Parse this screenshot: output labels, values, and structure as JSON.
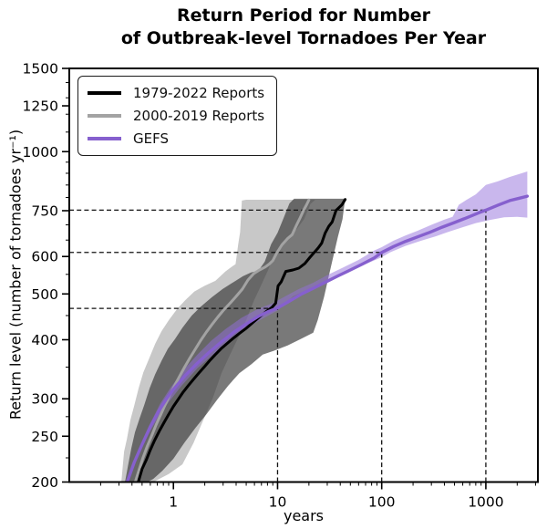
{
  "window": {
    "background": "#ffffff"
  },
  "title": {
    "line1": "Return Period for Number",
    "line2": "of Outbreak-level Tornadoes Per Year"
  },
  "axes": {
    "xlabel": "years",
    "ylabel": "Return level (number of tornadoes yr⁻¹)"
  },
  "legend": {
    "items": [
      {
        "label": "1979-2022 Reports",
        "color": "#000000"
      },
      {
        "label": "2000-2019 Reports",
        "color": "#a3a3a3"
      },
      {
        "label": "GEFS",
        "color": "#8660ce"
      }
    ]
  },
  "chart_data": {
    "type": "line",
    "title": "Return Period for Number of Outbreak-level Tornadoes Per Year",
    "xlabel": "years",
    "ylabel": "Return level (number of tornadoes yr⁻¹)",
    "xscale": "log",
    "yscale": "log",
    "xlim": [
      0.1,
      3160
    ],
    "ylim": [
      200,
      1500
    ],
    "grid": false,
    "legend_position": "upper left",
    "xticks": [
      1,
      10,
      100,
      1000
    ],
    "xticks_minor": [
      0.2,
      0.3,
      0.4,
      0.5,
      0.6,
      0.7,
      0.8,
      0.9,
      2,
      3,
      4,
      5,
      6,
      7,
      8,
      9,
      20,
      30,
      40,
      50,
      60,
      70,
      80,
      90,
      200,
      300,
      400,
      500,
      600,
      700,
      800,
      900,
      2000,
      3000
    ],
    "yticks": [
      200,
      250,
      300,
      400,
      500,
      600,
      750,
      1000,
      1250,
      1500
    ],
    "yticks_minor": [
      225,
      275,
      350,
      450,
      550,
      650,
      700,
      800,
      850,
      900,
      950,
      1100,
      1200,
      1300,
      1400
    ],
    "reference_crosshairs": [
      {
        "years": 10,
        "level": 466
      },
      {
        "years": 100,
        "level": 612
      },
      {
        "years": 1000,
        "level": 752
      }
    ],
    "crosshair_style": {
      "color": "#111111",
      "dash": "5 3.2",
      "width": 1.3
    },
    "series": [
      {
        "name": "1979-2022 Reports",
        "line_color": "#000000",
        "line_width": 3,
        "points": [
          [
            0.46,
            200
          ],
          [
            0.5,
            213
          ],
          [
            0.55,
            223
          ],
          [
            0.6,
            234
          ],
          [
            0.66,
            245
          ],
          [
            0.73,
            256
          ],
          [
            0.81,
            267
          ],
          [
            0.9,
            278
          ],
          [
            1.0,
            289
          ],
          [
            1.11,
            299
          ],
          [
            1.24,
            310
          ],
          [
            1.39,
            320
          ],
          [
            1.56,
            330
          ],
          [
            1.75,
            340
          ],
          [
            1.97,
            350
          ],
          [
            2.22,
            361
          ],
          [
            2.52,
            372
          ],
          [
            2.87,
            383
          ],
          [
            3.28,
            393
          ],
          [
            3.76,
            403
          ],
          [
            4.33,
            413
          ],
          [
            5.0,
            423
          ],
          [
            5.8,
            435
          ],
          [
            6.7,
            447
          ],
          [
            7.7,
            458
          ],
          [
            8.8,
            468
          ],
          [
            9.6,
            478
          ],
          [
            10.1,
            520
          ],
          [
            10.8,
            530
          ],
          [
            12,
            558
          ],
          [
            14,
            562
          ],
          [
            16,
            567
          ],
          [
            18.3,
            580
          ],
          [
            20.5,
            598
          ],
          [
            22.5,
            612
          ],
          [
            24.5,
            625
          ],
          [
            26.5,
            640
          ],
          [
            28.6,
            672
          ],
          [
            31,
            695
          ],
          [
            33.5,
            710
          ],
          [
            36.4,
            751
          ],
          [
            39,
            762
          ],
          [
            41.5,
            772
          ],
          [
            44.6,
            792
          ]
        ],
        "band_color": "rgba(58,58,58,0.68)",
        "band_polygon": [
          [
            0.343,
            200
          ],
          [
            0.364,
            215
          ],
          [
            0.395,
            236
          ],
          [
            0.428,
            255
          ],
          [
            0.474,
            273
          ],
          [
            0.524,
            291
          ],
          [
            0.592,
            316
          ],
          [
            0.668,
            338
          ],
          [
            0.769,
            361
          ],
          [
            0.886,
            383
          ],
          [
            1.04,
            402
          ],
          [
            1.22,
            424
          ],
          [
            1.5,
            450
          ],
          [
            1.83,
            470
          ],
          [
            2.34,
            492
          ],
          [
            2.97,
            512
          ],
          [
            3.79,
            530
          ],
          [
            4.64,
            545
          ],
          [
            5.56,
            555
          ],
          [
            6.55,
            560
          ],
          [
            7.53,
            585
          ],
          [
            8.68,
            637
          ],
          [
            9.99,
            673
          ],
          [
            11.5,
            726
          ],
          [
            13.0,
            777
          ],
          [
            14.4,
            795
          ],
          [
            44.6,
            795
          ],
          [
            42,
            720
          ],
          [
            38,
            661
          ],
          [
            34.3,
            600
          ],
          [
            31,
            545
          ],
          [
            28,
            493
          ],
          [
            24.3,
            440
          ],
          [
            22,
            414
          ],
          [
            16.9,
            402
          ],
          [
            12.5,
            389
          ],
          [
            9.2,
            379
          ],
          [
            7.2,
            372
          ],
          [
            5.6,
            355
          ],
          [
            4.3,
            340
          ],
          [
            3.36,
            320
          ],
          [
            2.64,
            299
          ],
          [
            2.07,
            278
          ],
          [
            1.62,
            260
          ],
          [
            1.27,
            242
          ],
          [
            1.0,
            224
          ],
          [
            0.78,
            211
          ],
          [
            0.64,
            203
          ],
          [
            0.56,
            200
          ]
        ]
      },
      {
        "name": "2000-2019 Reports",
        "line_color": "#a3a3a3",
        "line_width": 3,
        "points": [
          [
            0.43,
            200
          ],
          [
            0.47,
            213
          ],
          [
            0.51,
            225
          ],
          [
            0.56,
            238
          ],
          [
            0.62,
            251
          ],
          [
            0.68,
            264
          ],
          [
            0.75,
            277
          ],
          [
            0.83,
            291
          ],
          [
            0.92,
            305
          ],
          [
            1.02,
            319
          ],
          [
            1.14,
            334
          ],
          [
            1.28,
            350
          ],
          [
            1.44,
            366
          ],
          [
            1.62,
            382
          ],
          [
            1.83,
            399
          ],
          [
            2.07,
            415
          ],
          [
            2.35,
            431
          ],
          [
            2.67,
            447
          ],
          [
            3.05,
            463
          ],
          [
            3.5,
            478
          ],
          [
            4.0,
            494
          ],
          [
            4.6,
            512
          ],
          [
            5.2,
            535
          ],
          [
            5.9,
            552
          ],
          [
            6.7,
            562
          ],
          [
            7.6,
            570
          ],
          [
            8.3,
            578
          ],
          [
            9.0,
            588
          ],
          [
            9.8,
            610
          ],
          [
            11,
            635
          ],
          [
            12.5,
            655
          ],
          [
            13.8,
            667
          ],
          [
            15,
            695
          ],
          [
            16.5,
            725
          ],
          [
            17.8,
            752
          ],
          [
            19,
            772
          ],
          [
            20,
            790
          ]
        ],
        "band_color": "#c8c8c8",
        "band_polygon": [
          [
            0.316,
            200
          ],
          [
            0.336,
            232
          ],
          [
            0.357,
            246
          ],
          [
            0.387,
            271
          ],
          [
            0.42,
            290
          ],
          [
            0.464,
            316
          ],
          [
            0.514,
            341
          ],
          [
            0.581,
            364
          ],
          [
            0.668,
            392
          ],
          [
            0.769,
            417
          ],
          [
            0.904,
            440
          ],
          [
            1.08,
            464
          ],
          [
            1.3,
            485
          ],
          [
            1.59,
            506
          ],
          [
            1.99,
            520
          ],
          [
            2.53,
            533
          ],
          [
            3.16,
            558
          ],
          [
            3.72,
            573
          ],
          [
            3.95,
            578
          ],
          [
            4.19,
            637
          ],
          [
            4.37,
            676
          ],
          [
            4.45,
            726
          ],
          [
            4.54,
            788
          ],
          [
            5.0,
            791
          ],
          [
            23,
            791
          ],
          [
            20.7,
            775
          ],
          [
            18,
            720
          ],
          [
            15.3,
            686
          ],
          [
            12.5,
            661
          ],
          [
            10.8,
            637
          ],
          [
            9.2,
            600
          ],
          [
            8.0,
            558
          ],
          [
            6.8,
            516
          ],
          [
            5.9,
            483
          ],
          [
            5.0,
            440
          ],
          [
            4.3,
            409
          ],
          [
            3.5,
            372
          ],
          [
            2.9,
            340
          ],
          [
            2.4,
            302
          ],
          [
            1.9,
            268
          ],
          [
            1.56,
            242
          ],
          [
            1.22,
            218
          ],
          [
            0.9,
            208
          ],
          [
            0.64,
            200
          ]
        ]
      },
      {
        "name": "GEFS",
        "line_color": "#8660ce",
        "line_width": 3.4,
        "points": [
          [
            0.36,
            200
          ],
          [
            0.42,
            220
          ],
          [
            0.5,
            240
          ],
          [
            0.6,
            262
          ],
          [
            0.72,
            282
          ],
          [
            0.86,
            300
          ],
          [
            1.0,
            314
          ],
          [
            1.3,
            336
          ],
          [
            1.7,
            357
          ],
          [
            2.2,
            376
          ],
          [
            2.9,
            396
          ],
          [
            3.8,
            415
          ],
          [
            5.0,
            432
          ],
          [
            6.5,
            448
          ],
          [
            8.0,
            458
          ],
          [
            10,
            467
          ],
          [
            13,
            483
          ],
          [
            17,
            500
          ],
          [
            22,
            514
          ],
          [
            29,
            530
          ],
          [
            38,
            546
          ],
          [
            50,
            562
          ],
          [
            65,
            578
          ],
          [
            85,
            596
          ],
          [
            100,
            612
          ],
          [
            130,
            630
          ],
          [
            170,
            646
          ],
          [
            220,
            660
          ],
          [
            290,
            675
          ],
          [
            380,
            692
          ],
          [
            500,
            708
          ],
          [
            650,
            724
          ],
          [
            850,
            742
          ],
          [
            1000,
            752
          ],
          [
            1300,
            770
          ],
          [
            1700,
            788
          ],
          [
            2100,
            797
          ],
          [
            2500,
            805
          ]
        ],
        "band_color": "rgba(147,111,219,0.5)",
        "band_polygon": [
          [
            0.36,
            204
          ],
          [
            0.45,
            232
          ],
          [
            0.58,
            262
          ],
          [
            0.74,
            292
          ],
          [
            0.95,
            318
          ],
          [
            1.25,
            345
          ],
          [
            1.7,
            372
          ],
          [
            2.3,
            398
          ],
          [
            3.2,
            422
          ],
          [
            4.5,
            445
          ],
          [
            6.5,
            465
          ],
          [
            9,
            478
          ],
          [
            12,
            495
          ],
          [
            16,
            512
          ],
          [
            22,
            528
          ],
          [
            30,
            548
          ],
          [
            42,
            568
          ],
          [
            60,
            590
          ],
          [
            85,
            618
          ],
          [
            100,
            628
          ],
          [
            130,
            648
          ],
          [
            170,
            665
          ],
          [
            220,
            680
          ],
          [
            300,
            700
          ],
          [
            400,
            718
          ],
          [
            480,
            728
          ],
          [
            550,
            772
          ],
          [
            650,
            790
          ],
          [
            800,
            812
          ],
          [
            1000,
            850
          ],
          [
            1300,
            865
          ],
          [
            1700,
            884
          ],
          [
            2100,
            897
          ],
          [
            2500,
            908
          ],
          [
            2500,
            725
          ],
          [
            2000,
            728
          ],
          [
            1500,
            726
          ],
          [
            1100,
            717
          ],
          [
            800,
            706
          ],
          [
            600,
            692
          ],
          [
            450,
            678
          ],
          [
            330,
            662
          ],
          [
            240,
            648
          ],
          [
            170,
            632
          ],
          [
            120,
            612
          ],
          [
            100,
            598
          ],
          [
            75,
            582
          ],
          [
            55,
            565
          ],
          [
            40,
            548
          ],
          [
            28,
            530
          ],
          [
            20,
            512
          ],
          [
            14,
            494
          ],
          [
            10,
            461
          ],
          [
            7,
            442
          ],
          [
            5,
            422
          ],
          [
            3.5,
            398
          ],
          [
            2.4,
            372
          ],
          [
            1.7,
            348
          ],
          [
            1.2,
            320
          ],
          [
            0.9,
            295
          ],
          [
            0.7,
            272
          ],
          [
            0.55,
            248
          ],
          [
            0.45,
            228
          ],
          [
            0.36,
            196
          ]
        ]
      }
    ]
  }
}
